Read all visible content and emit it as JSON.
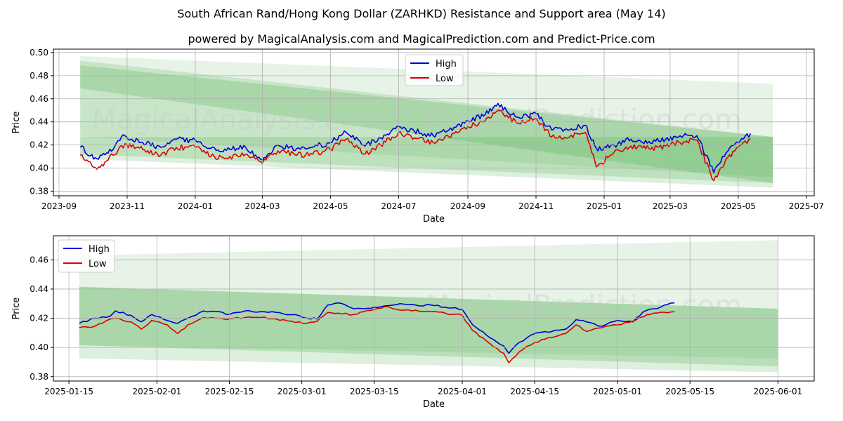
{
  "header": {
    "title": "South African Rand/Hong Kong Dollar (ZARHKD) Resistance and Support area (May 14)",
    "subtitle": "powered by MagicalAnalysis.com and MagicalPrediction.com and Predict-Price.com"
  },
  "watermarks": [
    "MagicalAnalysis.com",
    "MagicalPrediction.com"
  ],
  "colors": {
    "high": "#0000dd",
    "low": "#dd0000",
    "band": "#2e9e2e",
    "grid": "#b0b0b0"
  },
  "chart_data": [
    {
      "type": "line",
      "xlabel": "Date",
      "ylabel": "Price",
      "x_range": [
        "2023-08-27",
        "2025-07-08"
      ],
      "ylim": [
        0.376,
        0.503
      ],
      "x_ticks": [
        "2023-09",
        "2023-11",
        "2024-01",
        "2024-03",
        "2024-05",
        "2024-07",
        "2024-09",
        "2024-11",
        "2025-01",
        "2025-03",
        "2025-05",
        "2025-07"
      ],
      "x_tick_dates": [
        "2023-09-01",
        "2023-11-01",
        "2024-01-01",
        "2024-03-01",
        "2024-05-01",
        "2024-07-01",
        "2024-09-01",
        "2024-11-01",
        "2025-01-01",
        "2025-03-01",
        "2025-05-01",
        "2025-07-01"
      ],
      "y_ticks": [
        "0.38",
        "0.40",
        "0.42",
        "0.44",
        "0.46",
        "0.48",
        "0.50"
      ],
      "y_tick_values": [
        0.38,
        0.4,
        0.42,
        0.44,
        0.46,
        0.48,
        0.5
      ],
      "legend": {
        "position": "top-center",
        "entries": [
          "High",
          "Low"
        ]
      },
      "grid": true,
      "bands": [
        {
          "x": [
            "2023-09-20",
            "2025-06-01"
          ],
          "top": [
            0.497,
            0.473
          ],
          "bottom": [
            0.427,
            0.392
          ],
          "opacity": 0.12
        },
        {
          "x": [
            "2023-09-20",
            "2025-06-01"
          ],
          "top": [
            0.493,
            0.427
          ],
          "bottom": [
            0.408,
            0.383
          ],
          "opacity": 0.16
        },
        {
          "x": [
            "2023-09-20",
            "2025-06-01"
          ],
          "top": [
            0.489,
            0.427
          ],
          "bottom": [
            0.469,
            0.387
          ],
          "opacity": 0.2
        },
        {
          "x": [
            "2023-09-20",
            "2025-06-01"
          ],
          "top": [
            0.427,
            0.427
          ],
          "bottom": [
            0.412,
            0.387
          ],
          "opacity": 0.18
        }
      ],
      "series": [
        {
          "name": "High",
          "x": [
            "2023-09-20",
            "2023-10-05",
            "2023-10-15",
            "2023-10-30",
            "2023-11-15",
            "2023-12-01",
            "2023-12-15",
            "2024-01-01",
            "2024-01-15",
            "2024-02-01",
            "2024-02-15",
            "2024-03-01",
            "2024-03-15",
            "2024-04-01",
            "2024-04-15",
            "2024-05-01",
            "2024-05-15",
            "2024-06-01",
            "2024-06-15",
            "2024-07-01",
            "2024-07-15",
            "2024-08-01",
            "2024-08-15",
            "2024-09-01",
            "2024-09-15",
            "2024-09-28",
            "2024-10-15",
            "2024-11-01",
            "2024-11-15",
            "2024-12-01",
            "2024-12-15",
            "2024-12-25",
            "2025-01-10",
            "2025-01-25",
            "2025-02-10",
            "2025-02-25",
            "2025-03-10",
            "2025-03-25",
            "2025-04-09",
            "2025-04-20",
            "2025-05-01",
            "2025-05-12"
          ],
          "values": [
            0.418,
            0.408,
            0.413,
            0.428,
            0.422,
            0.418,
            0.425,
            0.424,
            0.417,
            0.416,
            0.418,
            0.407,
            0.42,
            0.417,
            0.418,
            0.422,
            0.431,
            0.419,
            0.426,
            0.436,
            0.432,
            0.428,
            0.433,
            0.441,
            0.445,
            0.456,
            0.444,
            0.447,
            0.433,
            0.433,
            0.437,
            0.417,
            0.42,
            0.425,
            0.423,
            0.425,
            0.428,
            0.428,
            0.396,
            0.413,
            0.422,
            0.43
          ]
        },
        {
          "name": "Low",
          "x": [
            "2023-09-20",
            "2023-10-05",
            "2023-10-15",
            "2023-10-30",
            "2023-11-15",
            "2023-12-01",
            "2023-12-15",
            "2024-01-01",
            "2024-01-15",
            "2024-02-01",
            "2024-02-15",
            "2024-03-01",
            "2024-03-15",
            "2024-04-01",
            "2024-04-15",
            "2024-05-01",
            "2024-05-15",
            "2024-06-01",
            "2024-06-15",
            "2024-07-01",
            "2024-07-15",
            "2024-08-01",
            "2024-08-15",
            "2024-09-01",
            "2024-09-15",
            "2024-09-28",
            "2024-10-15",
            "2024-11-01",
            "2024-11-15",
            "2024-12-01",
            "2024-12-15",
            "2024-12-25",
            "2025-01-10",
            "2025-01-25",
            "2025-02-10",
            "2025-02-25",
            "2025-03-10",
            "2025-03-25",
            "2025-04-09",
            "2025-04-20",
            "2025-05-01",
            "2025-05-12"
          ],
          "values": [
            0.411,
            0.399,
            0.407,
            0.421,
            0.416,
            0.411,
            0.418,
            0.418,
            0.41,
            0.41,
            0.412,
            0.404,
            0.415,
            0.411,
            0.412,
            0.416,
            0.425,
            0.412,
            0.42,
            0.431,
            0.426,
            0.422,
            0.427,
            0.436,
            0.44,
            0.45,
            0.439,
            0.443,
            0.427,
            0.427,
            0.431,
            0.401,
            0.414,
            0.419,
            0.417,
            0.419,
            0.422,
            0.424,
            0.389,
            0.408,
            0.418,
            0.425
          ]
        }
      ]
    },
    {
      "type": "line",
      "xlabel": "Date",
      "ylabel": "Price",
      "x_range": [
        "2025-01-12",
        "2025-06-08"
      ],
      "ylim": [
        0.377,
        0.4765
      ],
      "x_ticks": [
        "2025-01-15",
        "2025-02-01",
        "2025-02-15",
        "2025-03-01",
        "2025-03-15",
        "2025-04-01",
        "2025-04-15",
        "2025-05-01",
        "2025-05-15",
        "2025-06-01"
      ],
      "x_tick_dates": [
        "2025-01-15",
        "2025-02-01",
        "2025-02-15",
        "2025-03-01",
        "2025-03-15",
        "2025-04-01",
        "2025-04-15",
        "2025-05-01",
        "2025-05-15",
        "2025-06-01"
      ],
      "y_ticks": [
        "0.38",
        "0.40",
        "0.42",
        "0.44",
        "0.46"
      ],
      "y_tick_values": [
        0.38,
        0.4,
        0.42,
        0.44,
        0.46
      ],
      "legend": {
        "position": "top-left",
        "entries": [
          "High",
          "Low"
        ]
      },
      "grid": true,
      "bands": [
        {
          "x": [
            "2025-01-17",
            "2025-06-01"
          ],
          "top": [
            0.463,
            0.4735
          ],
          "bottom": [
            0.4015,
            0.3925
          ],
          "opacity": 0.12
        },
        {
          "x": [
            "2025-01-17",
            "2025-06-01"
          ],
          "top": [
            0.4415,
            0.4265
          ],
          "bottom": [
            0.3925,
            0.383
          ],
          "opacity": 0.16
        },
        {
          "x": [
            "2025-01-17",
            "2025-06-01"
          ],
          "top": [
            0.4415,
            0.4265
          ],
          "bottom": [
            0.4015,
            0.387
          ],
          "opacity": 0.2
        }
      ],
      "series": [
        {
          "name": "High",
          "x": [
            "2025-01-17",
            "2025-01-20",
            "2025-01-23",
            "2025-01-24",
            "2025-01-27",
            "2025-01-29",
            "2025-01-31",
            "2025-02-03",
            "2025-02-05",
            "2025-02-07",
            "2025-02-10",
            "2025-02-13",
            "2025-02-15",
            "2025-02-18",
            "2025-02-21",
            "2025-02-24",
            "2025-02-27",
            "2025-03-02",
            "2025-03-04",
            "2025-03-06",
            "2025-03-08",
            "2025-03-11",
            "2025-03-13",
            "2025-03-15",
            "2025-03-17",
            "2025-03-20",
            "2025-03-23",
            "2025-03-26",
            "2025-04-01",
            "2025-04-03",
            "2025-04-07",
            "2025-04-09",
            "2025-04-10",
            "2025-04-12",
            "2025-04-15",
            "2025-04-21",
            "2025-04-23",
            "2025-04-25",
            "2025-04-28",
            "2025-05-01",
            "2025-05-04",
            "2025-05-06",
            "2025-05-08",
            "2025-05-12"
          ],
          "values": [
            0.4165,
            0.42,
            0.4215,
            0.425,
            0.422,
            0.4175,
            0.4225,
            0.4185,
            0.4165,
            0.42,
            0.425,
            0.4245,
            0.4225,
            0.425,
            0.4245,
            0.424,
            0.4225,
            0.42,
            0.4195,
            0.429,
            0.4305,
            0.4265,
            0.4265,
            0.4275,
            0.4285,
            0.43,
            0.429,
            0.429,
            0.426,
            0.4155,
            0.4055,
            0.401,
            0.396,
            0.4035,
            0.4095,
            0.4125,
            0.419,
            0.4175,
            0.4145,
            0.4185,
            0.4175,
            0.4245,
            0.4265,
            0.4305
          ]
        },
        {
          "name": "Low",
          "x": [
            "2025-01-17",
            "2025-01-20",
            "2025-01-23",
            "2025-01-24",
            "2025-01-27",
            "2025-01-29",
            "2025-01-31",
            "2025-02-03",
            "2025-02-05",
            "2025-02-07",
            "2025-02-10",
            "2025-02-13",
            "2025-02-15",
            "2025-02-18",
            "2025-02-21",
            "2025-02-24",
            "2025-02-27",
            "2025-03-02",
            "2025-03-04",
            "2025-03-06",
            "2025-03-08",
            "2025-03-11",
            "2025-03-13",
            "2025-03-15",
            "2025-03-17",
            "2025-03-20",
            "2025-03-23",
            "2025-03-26",
            "2025-04-01",
            "2025-04-03",
            "2025-04-07",
            "2025-04-09",
            "2025-04-10",
            "2025-04-12",
            "2025-04-15",
            "2025-04-21",
            "2025-04-23",
            "2025-04-25",
            "2025-04-28",
            "2025-05-01",
            "2025-05-04",
            "2025-05-06",
            "2025-05-08",
            "2025-05-12"
          ],
          "values": [
            0.4135,
            0.4145,
            0.4195,
            0.42,
            0.4175,
            0.4125,
            0.4185,
            0.4155,
            0.4095,
            0.4155,
            0.4205,
            0.42,
            0.4195,
            0.4205,
            0.4205,
            0.4195,
            0.418,
            0.4165,
            0.418,
            0.424,
            0.4235,
            0.4225,
            0.4245,
            0.426,
            0.428,
            0.4255,
            0.4255,
            0.4245,
            0.422,
            0.4115,
            0.4005,
            0.396,
            0.3895,
            0.397,
            0.4035,
            0.4095,
            0.4155,
            0.411,
            0.4135,
            0.4155,
            0.418,
            0.421,
            0.4235,
            0.4245
          ]
        }
      ]
    }
  ]
}
